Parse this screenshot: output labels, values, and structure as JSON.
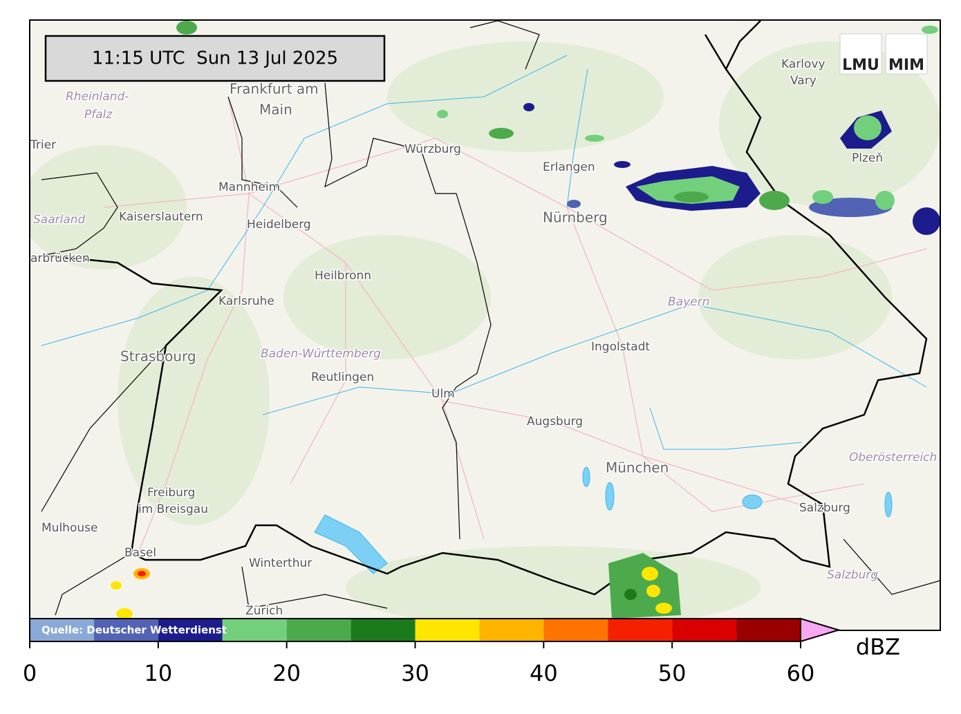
{
  "timestamp": "11:15 UTC  Sun 13 Jul 2025",
  "logo": {
    "left": "LMU",
    "right": "MIM"
  },
  "source": "Quelle: Deutscher Wetterdienst",
  "places": [
    "Frankfurt am",
    "Main",
    "Rheinland-",
    "Pfalz",
    "Trier",
    "Mannheim",
    "Kaiserslautern",
    "Saarland",
    "Heidelberg",
    "arbrücken",
    "Heilbronn",
    "Karlsruhe",
    "Strasbourg",
    "Baden-Württemberg",
    "Reutlingen",
    "Ulm",
    "Würzburg",
    "Erlangen",
    "Nürnberg",
    "Bayern",
    "Ingolstadt",
    "Augsburg",
    "München",
    "Karlovy",
    "Vary",
    "Plzeň",
    "Oberösterreich",
    "Salzburg",
    "Salzburg",
    "Freiburg",
    "im Breisgau",
    "Mulhouse",
    "Basel",
    "Winterthur",
    "Zürich"
  ],
  "colorbar": {
    "label": "dBZ",
    "bounds": [
      0,
      5,
      10,
      15,
      20,
      25,
      30,
      35,
      40,
      45,
      50,
      55,
      60
    ],
    "colors": [
      "#8aa9d6",
      "#5262b4",
      "#1c1c8c",
      "#72d07c",
      "#4caa4c",
      "#1b7a1b",
      "#ffe600",
      "#ffb400",
      "#ff7300",
      "#f52000",
      "#d80000",
      "#9a0000"
    ],
    "extend_color": "#f7a8f0",
    "lim": [
      0,
      60
    ],
    "ticks": [
      0,
      10,
      20,
      30,
      40,
      50,
      60
    ]
  }
}
